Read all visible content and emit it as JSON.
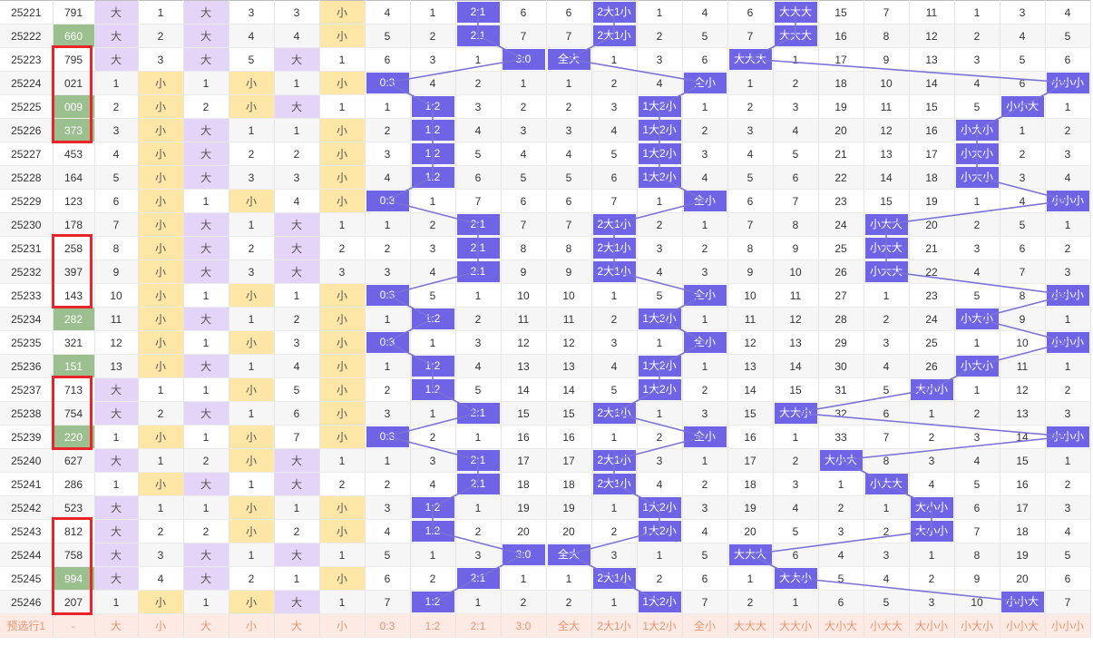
{
  "colors": {
    "hit": "#6f63e6",
    "big_cell": "#e4d4f8",
    "small_cell": "#fde6a6",
    "highlight_number": "#9cbf8f",
    "line": "#7b74d6",
    "red_box": "#e8252b",
    "footer_bg": "#fdeae4",
    "footer_text": "#e8956e"
  },
  "rows": [
    {
      "issue": "25221",
      "num": "791",
      "cells": [
        "大",
        "1",
        "大",
        "3",
        "3",
        "小",
        "4",
        "1",
        "2:1",
        "6",
        "6",
        "2大1小",
        "1",
        "4",
        "6",
        "大大大",
        "15",
        "7",
        "11",
        "1",
        "3",
        "4"
      ],
      "hl": false
    },
    {
      "issue": "25222",
      "num": "660",
      "cells": [
        "大",
        "2",
        "大",
        "4",
        "4",
        "小",
        "5",
        "2",
        "2:1",
        "7",
        "7",
        "2大1小",
        "2",
        "5",
        "7",
        "大大大",
        "16",
        "8",
        "12",
        "2",
        "4",
        "5"
      ],
      "hl": true
    },
    {
      "issue": "25223",
      "num": "795",
      "cells": [
        "大",
        "3",
        "大",
        "5",
        "大",
        "1",
        "6",
        "3",
        "1",
        "3:0",
        "全大",
        "1",
        "3",
        "6",
        "大大大",
        "1",
        "17",
        "9",
        "13",
        "3",
        "5",
        "6"
      ],
      "hl": false
    },
    {
      "issue": "25224",
      "num": "021",
      "cells": [
        "1",
        "小",
        "1",
        "小",
        "1",
        "小",
        "0:3",
        "4",
        "2",
        "1",
        "1",
        "2",
        "4",
        "全小",
        "1",
        "2",
        "18",
        "10",
        "14",
        "4",
        "6",
        "小小小"
      ],
      "hl": false
    },
    {
      "issue": "25225",
      "num": "009",
      "cells": [
        "2",
        "小",
        "2",
        "小",
        "大",
        "1",
        "1",
        "1:2",
        "3",
        "2",
        "2",
        "3",
        "1大2小",
        "1",
        "2",
        "3",
        "19",
        "11",
        "15",
        "5",
        "小小大",
        "1"
      ],
      "hl": true
    },
    {
      "issue": "25226",
      "num": "373",
      "cells": [
        "3",
        "小",
        "大",
        "1",
        "1",
        "小",
        "2",
        "1:2",
        "4",
        "3",
        "3",
        "4",
        "1大2小",
        "2",
        "3",
        "4",
        "20",
        "12",
        "16",
        "小大小",
        "1",
        "2"
      ],
      "hl": true
    },
    {
      "issue": "25227",
      "num": "453",
      "cells": [
        "4",
        "小",
        "大",
        "2",
        "2",
        "小",
        "3",
        "1:2",
        "5",
        "4",
        "4",
        "5",
        "1大2小",
        "3",
        "4",
        "5",
        "21",
        "13",
        "17",
        "小大小",
        "2",
        "3"
      ],
      "hl": false
    },
    {
      "issue": "25228",
      "num": "164",
      "cells": [
        "5",
        "小",
        "大",
        "3",
        "3",
        "小",
        "4",
        "1:2",
        "6",
        "5",
        "5",
        "6",
        "1大2小",
        "4",
        "5",
        "6",
        "22",
        "14",
        "18",
        "小大小",
        "3",
        "4"
      ],
      "hl": false
    },
    {
      "issue": "25229",
      "num": "123",
      "cells": [
        "6",
        "小",
        "1",
        "小",
        "4",
        "小",
        "0:3",
        "1",
        "7",
        "6",
        "6",
        "7",
        "1",
        "全小",
        "6",
        "7",
        "23",
        "15",
        "19",
        "1",
        "4",
        "小小小"
      ],
      "hl": false
    },
    {
      "issue": "25230",
      "num": "178",
      "cells": [
        "7",
        "小",
        "大",
        "1",
        "大",
        "1",
        "1",
        "2",
        "2:1",
        "7",
        "7",
        "2大1小",
        "2",
        "1",
        "7",
        "8",
        "24",
        "小大大",
        "20",
        "2",
        "5",
        "1"
      ],
      "hl": false
    },
    {
      "issue": "25231",
      "num": "258",
      "cells": [
        "8",
        "小",
        "大",
        "2",
        "大",
        "2",
        "2",
        "3",
        "2:1",
        "8",
        "8",
        "2大1小",
        "3",
        "2",
        "8",
        "9",
        "25",
        "小大大",
        "21",
        "3",
        "6",
        "2"
      ],
      "hl": false
    },
    {
      "issue": "25232",
      "num": "397",
      "cells": [
        "9",
        "小",
        "大",
        "3",
        "大",
        "3",
        "3",
        "4",
        "2:1",
        "9",
        "9",
        "2大1小",
        "4",
        "3",
        "9",
        "10",
        "26",
        "小大大",
        "22",
        "4",
        "7",
        "3"
      ],
      "hl": false
    },
    {
      "issue": "25233",
      "num": "143",
      "cells": [
        "10",
        "小",
        "1",
        "小",
        "1",
        "小",
        "0:3",
        "5",
        "1",
        "10",
        "10",
        "1",
        "5",
        "全小",
        "10",
        "11",
        "27",
        "1",
        "23",
        "5",
        "8",
        "小小小"
      ],
      "hl": false
    },
    {
      "issue": "25234",
      "num": "282",
      "cells": [
        "11",
        "小",
        "大",
        "1",
        "2",
        "小",
        "1",
        "1:2",
        "2",
        "11",
        "11",
        "2",
        "1大2小",
        "1",
        "11",
        "12",
        "28",
        "2",
        "24",
        "小大小",
        "9",
        "1"
      ],
      "hl": true
    },
    {
      "issue": "25235",
      "num": "321",
      "cells": [
        "12",
        "小",
        "1",
        "小",
        "3",
        "小",
        "0:3",
        "1",
        "3",
        "12",
        "12",
        "3",
        "1",
        "全小",
        "12",
        "13",
        "29",
        "3",
        "25",
        "1",
        "10",
        "小小小"
      ],
      "hl": false
    },
    {
      "issue": "25236",
      "num": "151",
      "cells": [
        "13",
        "小",
        "大",
        "1",
        "4",
        "小",
        "1",
        "1:2",
        "4",
        "13",
        "13",
        "4",
        "1大2小",
        "1",
        "13",
        "14",
        "30",
        "4",
        "26",
        "小大小",
        "11",
        "1"
      ],
      "hl": true
    },
    {
      "issue": "25237",
      "num": "713",
      "cells": [
        "大",
        "1",
        "1",
        "小",
        "5",
        "小",
        "2",
        "1:2",
        "5",
        "14",
        "14",
        "5",
        "1大2小",
        "2",
        "14",
        "15",
        "31",
        "5",
        "大小小",
        "1",
        "12",
        "2"
      ],
      "hl": false
    },
    {
      "issue": "25238",
      "num": "754",
      "cells": [
        "大",
        "2",
        "大",
        "1",
        "6",
        "小",
        "3",
        "1",
        "2:1",
        "15",
        "15",
        "2大1小",
        "1",
        "3",
        "15",
        "大大小",
        "32",
        "6",
        "1",
        "2",
        "13",
        "3"
      ],
      "hl": false
    },
    {
      "issue": "25239",
      "num": "220",
      "cells": [
        "1",
        "小",
        "1",
        "小",
        "7",
        "小",
        "0:3",
        "2",
        "1",
        "16",
        "16",
        "1",
        "2",
        "全小",
        "16",
        "1",
        "33",
        "7",
        "2",
        "3",
        "14",
        "小小小"
      ],
      "hl": true
    },
    {
      "issue": "25240",
      "num": "627",
      "cells": [
        "大",
        "1",
        "2",
        "小",
        "大",
        "1",
        "1",
        "3",
        "2:1",
        "17",
        "17",
        "2大1小",
        "3",
        "1",
        "17",
        "2",
        "大小大",
        "8",
        "3",
        "4",
        "15",
        "1"
      ],
      "hl": false
    },
    {
      "issue": "25241",
      "num": "286",
      "cells": [
        "1",
        "小",
        "大",
        "1",
        "大",
        "2",
        "2",
        "4",
        "2:1",
        "18",
        "18",
        "2大1小",
        "4",
        "2",
        "18",
        "3",
        "1",
        "小大大",
        "4",
        "5",
        "16",
        "2"
      ],
      "hl": false
    },
    {
      "issue": "25242",
      "num": "523",
      "cells": [
        "大",
        "1",
        "1",
        "小",
        "1",
        "小",
        "3",
        "1:2",
        "1",
        "19",
        "19",
        "1",
        "1大2小",
        "3",
        "19",
        "4",
        "2",
        "1",
        "大小小",
        "6",
        "17",
        "3"
      ],
      "hl": false
    },
    {
      "issue": "25243",
      "num": "812",
      "cells": [
        "大",
        "2",
        "2",
        "小",
        "2",
        "小",
        "4",
        "1:2",
        "2",
        "20",
        "20",
        "2",
        "1大2小",
        "4",
        "20",
        "5",
        "3",
        "2",
        "大小小",
        "7",
        "18",
        "4"
      ],
      "hl": false
    },
    {
      "issue": "25244",
      "num": "758",
      "cells": [
        "大",
        "3",
        "大",
        "1",
        "大",
        "1",
        "5",
        "1",
        "3",
        "3:0",
        "全大",
        "3",
        "1",
        "5",
        "大大大",
        "6",
        "4",
        "3",
        "1",
        "8",
        "19",
        "5"
      ],
      "hl": false
    },
    {
      "issue": "25245",
      "num": "994",
      "cells": [
        "大",
        "4",
        "大",
        "2",
        "1",
        "小",
        "6",
        "2",
        "2:1",
        "1",
        "1",
        "2大1小",
        "2",
        "6",
        "1",
        "大大小",
        "5",
        "4",
        "2",
        "9",
        "20",
        "6"
      ],
      "hl": true
    },
    {
      "issue": "25246",
      "num": "207",
      "cells": [
        "1",
        "小",
        "1",
        "小",
        "大",
        "1",
        "7",
        "1:2",
        "1",
        "2",
        "2",
        "1",
        "1大2小",
        "7",
        "2",
        "1",
        "6",
        "5",
        "3",
        "10",
        "小小大",
        "7"
      ],
      "hl": false
    }
  ],
  "footer": {
    "label": "预选行1",
    "num": "-",
    "cells": [
      "大",
      "小",
      "大",
      "小",
      "大",
      "小",
      "0:3",
      "1:2",
      "2:1",
      "3:0",
      "全大",
      "2大1小",
      "1大2小",
      "全小",
      "大大大",
      "大大小",
      "大小大",
      "小大大",
      "大小小",
      "小大小",
      "小小大",
      "小小小"
    ]
  }
}
